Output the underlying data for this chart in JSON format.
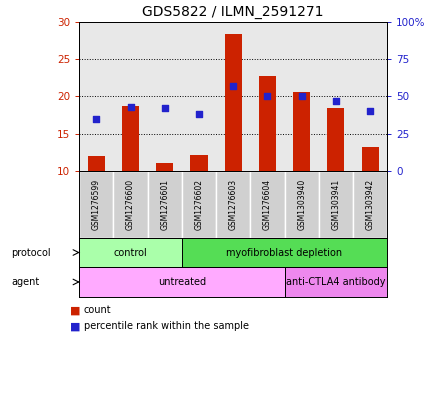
{
  "title": "GDS5822 / ILMN_2591271",
  "samples": [
    "GSM1276599",
    "GSM1276600",
    "GSM1276601",
    "GSM1276602",
    "GSM1276603",
    "GSM1276604",
    "GSM1303940",
    "GSM1303941",
    "GSM1303942"
  ],
  "counts": [
    12.0,
    18.7,
    11.0,
    12.1,
    28.3,
    22.7,
    20.6,
    18.4,
    13.2
  ],
  "percentile_ranks": [
    35,
    43,
    42,
    38,
    57,
    50,
    50,
    47,
    40
  ],
  "ylim_left": [
    10,
    30
  ],
  "ylim_right": [
    0,
    100
  ],
  "yticks_left": [
    10,
    15,
    20,
    25,
    30
  ],
  "yticks_right": [
    0,
    25,
    50,
    75,
    100
  ],
  "ytick_labels_left": [
    "10",
    "15",
    "20",
    "25",
    "30"
  ],
  "ytick_labels_right": [
    "0",
    "25",
    "50",
    "75",
    "100%"
  ],
  "bar_color": "#cc2200",
  "dot_color": "#2222cc",
  "protocol_groups": [
    {
      "label": "control",
      "start": 0,
      "end": 3,
      "color": "#aaffaa"
    },
    {
      "label": "myofibroblast depletion",
      "start": 3,
      "end": 9,
      "color": "#55dd55"
    }
  ],
  "agent_groups": [
    {
      "label": "untreated",
      "start": 0,
      "end": 6,
      "color": "#ffaaff"
    },
    {
      "label": "anti-CTLA4 antibody",
      "start": 6,
      "end": 9,
      "color": "#ee88ee"
    }
  ],
  "plot_bg_color": "#e8e8e8",
  "bar_color_red": "#cc2200",
  "dot_color_blue": "#2222cc",
  "title_fontsize": 10,
  "tick_fontsize": 7.5,
  "sample_fontsize": 5.5,
  "row_label_fontsize": 7,
  "group_label_fontsize": 7,
  "legend_fontsize": 7
}
